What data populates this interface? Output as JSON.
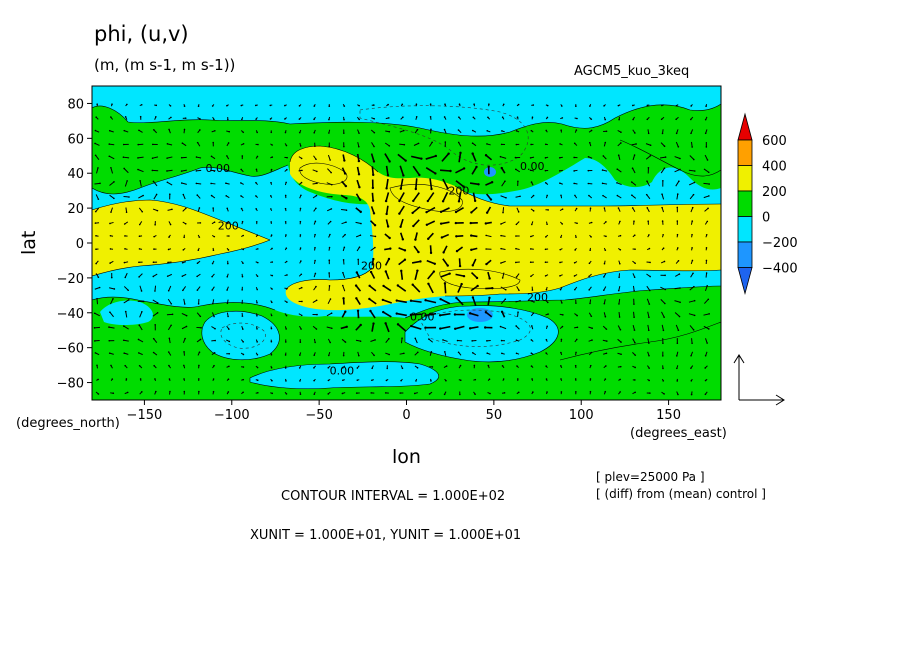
{
  "title": "phi, (u,v)",
  "units": "(m, (m s-1, m s-1))",
  "run_name": "AGCM5_kuo_3keq",
  "x_label": "lon",
  "y_label": "lat",
  "x_unit": "(degrees_east)",
  "y_unit": "(degrees_north)",
  "notes": [
    "[ plev=25000 Pa ]",
    "[ (diff) from (mean) control ]"
  ],
  "contour_interval": "CONTOUR INTERVAL = 1.000E+02",
  "vector_units": "XUNIT = 1.000E+01, YUNIT = 1.000E+01",
  "colors": {
    "below_-400": "#1e64f0",
    "-400_-200": "#1e96ff",
    "-200_0": "#00e6ff",
    "0_200": "#00dc00",
    "200_400": "#f0f000",
    "400_600": "#ffa000",
    "above_600": "#e60000"
  },
  "chart_data": {
    "type": "heatmap",
    "subtype": "filled contour with wind vectors",
    "xlim": [
      -180,
      180
    ],
    "ylim": [
      -90,
      90
    ],
    "x_ticks": [
      -150,
      -100,
      -50,
      0,
      50,
      100,
      150
    ],
    "y_ticks": [
      80,
      60,
      40,
      20,
      0,
      -20,
      -40,
      -60,
      -80
    ],
    "colorbar": {
      "levels": [
        600,
        400,
        200,
        0,
        -200,
        -400
      ],
      "level_labels": [
        "600",
        "400",
        "200",
        "0",
        "−200",
        "−400"
      ],
      "colors": [
        "#e60000",
        "#ffa000",
        "#f0f000",
        "#00dc00",
        "#00e6ff",
        "#1e96ff",
        "#1e64f0"
      ]
    },
    "contour_labels": [
      {
        "text": "0.00",
        "lon": -108,
        "lat": 43
      },
      {
        "text": "200",
        "lon": -102,
        "lat": 10
      },
      {
        "text": "0.00",
        "lon": 72,
        "lat": 44
      },
      {
        "text": "200",
        "lon": 30,
        "lat": 30
      },
      {
        "text": "200",
        "lon": -20,
        "lat": -13
      },
      {
        "text": "200",
        "lon": 75,
        "lat": -31
      },
      {
        "text": "0.00",
        "lon": 9,
        "lat": -42
      },
      {
        "text": "0.00",
        "lon": -37,
        "lat": -73
      }
    ]
  }
}
